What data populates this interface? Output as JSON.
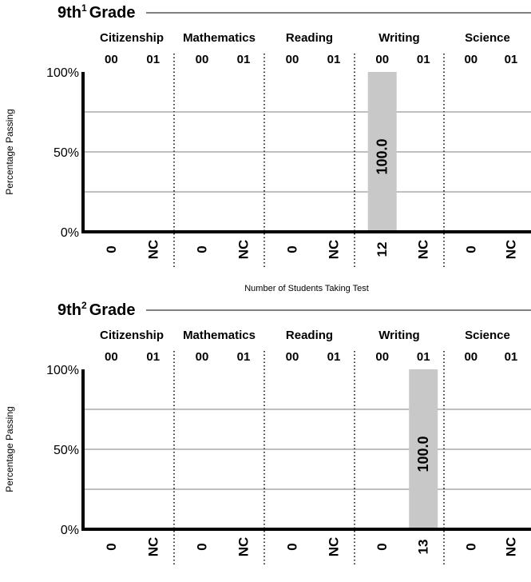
{
  "chart_data": [
    {
      "type": "bar",
      "title": "9th",
      "title_sup": "1",
      "title_suffix": "Grade",
      "ylabel": "Percentage Passing",
      "xlabel": "Number of Students Taking Test",
      "y_ticks": [
        "100%",
        "50%",
        "0%"
      ],
      "ylim": [
        0,
        100
      ],
      "grid": true,
      "subjects": [
        "Citizenship",
        "Mathematics",
        "Reading",
        "Writing",
        "Science"
      ],
      "years": [
        "00",
        "01"
      ],
      "values": [
        [
          null,
          null
        ],
        [
          null,
          null
        ],
        [
          null,
          null
        ],
        [
          100.0,
          null
        ],
        [
          null,
          null
        ]
      ],
      "value_labels": [
        [
          "",
          ""
        ],
        [
          "",
          ""
        ],
        [
          "",
          ""
        ],
        [
          "100.0",
          ""
        ],
        [
          "",
          ""
        ]
      ],
      "counts": [
        [
          "0",
          "NC"
        ],
        [
          "0",
          "NC"
        ],
        [
          "0",
          "NC"
        ],
        [
          "12",
          "NC"
        ],
        [
          "0",
          "NC"
        ]
      ],
      "bar_color": "#c8c8c8"
    },
    {
      "type": "bar",
      "title": "9th",
      "title_sup": "2",
      "title_suffix": "Grade",
      "ylabel": "Percentage Passing",
      "xlabel": "Number of Students Taking Test",
      "y_ticks": [
        "100%",
        "50%",
        "0%"
      ],
      "ylim": [
        0,
        100
      ],
      "grid": true,
      "subjects": [
        "Citizenship",
        "Mathematics",
        "Reading",
        "Writing",
        "Science"
      ],
      "years": [
        "00",
        "01"
      ],
      "values": [
        [
          null,
          null
        ],
        [
          null,
          null
        ],
        [
          null,
          null
        ],
        [
          null,
          100.0
        ],
        [
          null,
          null
        ]
      ],
      "value_labels": [
        [
          "",
          ""
        ],
        [
          "",
          ""
        ],
        [
          "",
          ""
        ],
        [
          "",
          "100.0"
        ],
        [
          "",
          ""
        ]
      ],
      "counts": [
        [
          "0",
          "NC"
        ],
        [
          "0",
          "NC"
        ],
        [
          "0",
          "NC"
        ],
        [
          "0",
          "13"
        ],
        [
          "0",
          "NC"
        ]
      ],
      "bar_color": "#c8c8c8"
    }
  ]
}
